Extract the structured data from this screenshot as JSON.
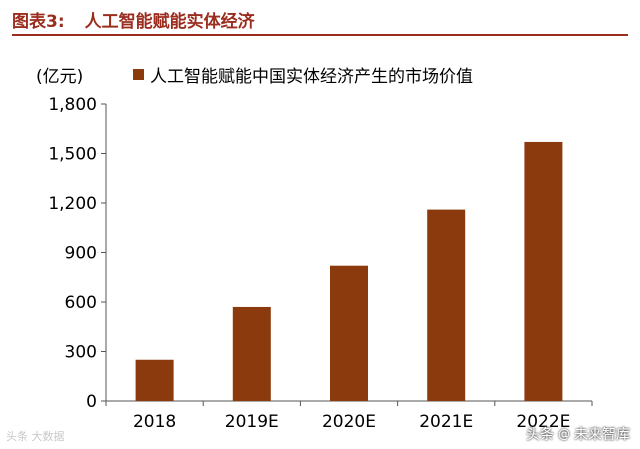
{
  "header": {
    "figure_label": "图表3:",
    "title": "人工智能赋能实体经济"
  },
  "colors": {
    "accent": "#9b2d1f",
    "bar": "#8b3a0e",
    "axis": "#555555"
  },
  "chart_data": {
    "type": "bar",
    "unit_label": "(亿元)",
    "categories": [
      "2018",
      "2019E",
      "2020E",
      "2021E",
      "2022E"
    ],
    "series": [
      {
        "name": "人工智能赋能中国实体经济产生的市场价值",
        "values": [
          250,
          570,
          820,
          1160,
          1570
        ]
      }
    ],
    "ylim": [
      0,
      1800
    ],
    "yticks": [
      "0",
      "300",
      "600",
      "900",
      "1,200",
      "1,500",
      "1,800"
    ],
    "ytick_values": [
      0,
      300,
      600,
      900,
      1200,
      1500,
      1800
    ],
    "legend_position": "top-left",
    "grid": false
  },
  "watermarks": {
    "left": "头条 大数据",
    "right_prefix": "头条",
    "right_at": "@",
    "right_name": "未来智库"
  }
}
